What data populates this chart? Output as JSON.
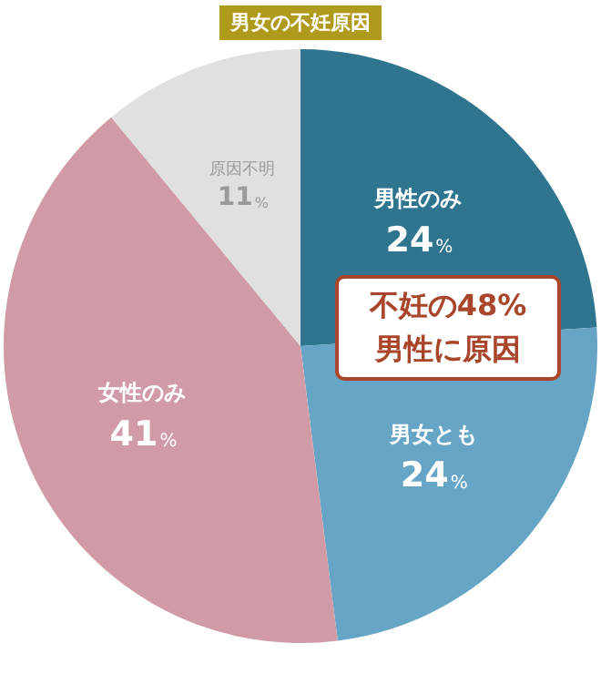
{
  "chart_data": {
    "type": "pie",
    "title": "男女の不妊原因",
    "categories": [
      "男性のみ",
      "男女とも",
      "女性のみ",
      "原因不明"
    ],
    "values": [
      24,
      24,
      41,
      11
    ],
    "value_labels": [
      "24%",
      "24%",
      "41%",
      "11%"
    ],
    "colors": [
      "#2f7590",
      "#67a5c6",
      "#d09aa6",
      "#e0e0e0"
    ],
    "legend": false,
    "annotations": [
      "不妊の48%\n男性に原因"
    ]
  }
}
